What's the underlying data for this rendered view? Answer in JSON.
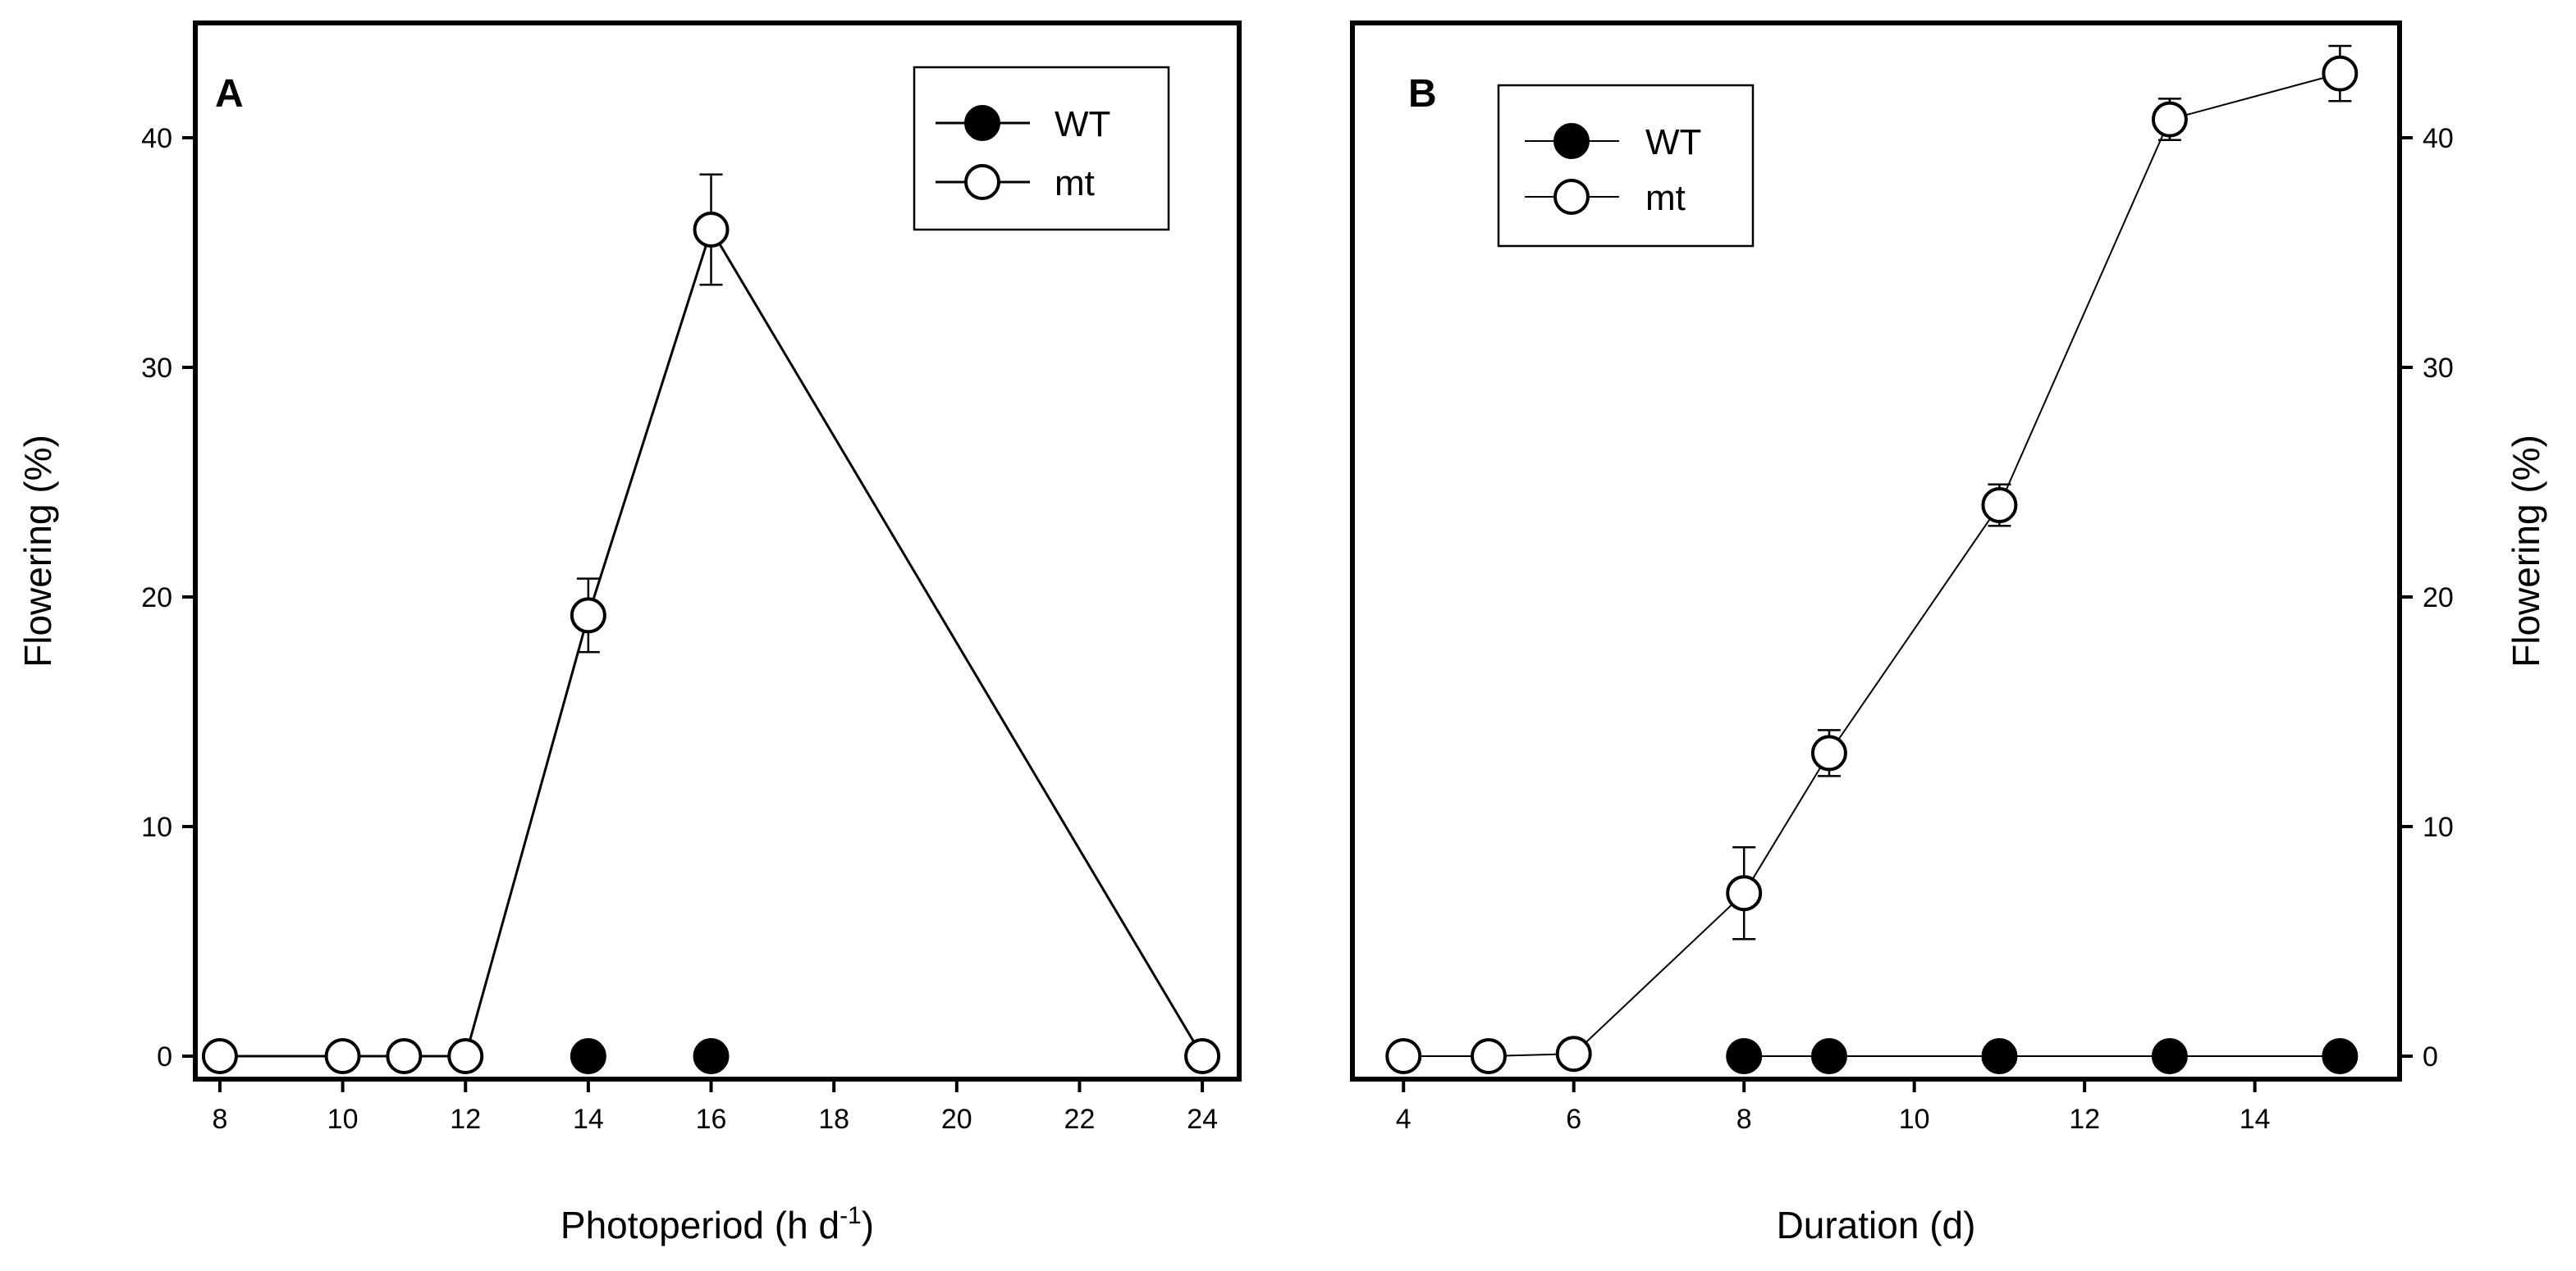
{
  "chart_data": [
    {
      "type": "line",
      "panel_label": "A",
      "xlabel": "Photoperiod (h d",
      "xlabel_superscript": "-1",
      "xlabel_close": ")",
      "ylabel": "Flowering (%)",
      "xlim": [
        7.6,
        24.6
      ],
      "ylim": [
        -1,
        45
      ],
      "xticks": [
        8,
        10,
        12,
        14,
        16,
        18,
        20,
        22,
        24
      ],
      "yticks": [
        0,
        10,
        20,
        30,
        40
      ],
      "legend": [
        "WT",
        "mt"
      ],
      "legend_position": "top-right",
      "series": [
        {
          "name": "WT",
          "marker": "filled",
          "connected": false,
          "x": [
            14,
            16
          ],
          "y": [
            0,
            0
          ],
          "err": [
            0,
            0
          ]
        },
        {
          "name": "mt",
          "marker": "open",
          "connected": true,
          "x": [
            8,
            10,
            11,
            12,
            14,
            16,
            24
          ],
          "y": [
            0,
            0,
            0,
            0,
            19.2,
            36,
            0
          ],
          "err": [
            0,
            0,
            0,
            0,
            1.6,
            2.4,
            0
          ]
        }
      ]
    },
    {
      "type": "line",
      "panel_label": "B",
      "xlabel": "Duration (d)",
      "ylabel": "Flowering (%)",
      "xlim": [
        3.4,
        15.7
      ],
      "ylim": [
        -1,
        45
      ],
      "xticks": [
        4,
        6,
        8,
        10,
        12,
        14
      ],
      "yticks": [
        0,
        10,
        20,
        30,
        40
      ],
      "y_axis_side": "right",
      "legend": [
        "WT",
        "mt"
      ],
      "legend_position": "top-left",
      "series": [
        {
          "name": "WT",
          "marker": "filled",
          "connected": true,
          "x": [
            8,
            9,
            11,
            13,
            15
          ],
          "y": [
            0,
            0,
            0,
            0,
            0
          ],
          "err": [
            0,
            0,
            0,
            0,
            0
          ]
        },
        {
          "name": "mt",
          "marker": "open",
          "connected": true,
          "x": [
            4,
            5,
            6,
            8,
            9,
            11,
            13,
            15
          ],
          "y": [
            0,
            0,
            0.1,
            7.1,
            13.2,
            24,
            40.8,
            42.8
          ],
          "err": [
            0,
            0,
            0,
            2,
            1,
            0.9,
            0.9,
            1.2
          ]
        }
      ]
    }
  ]
}
